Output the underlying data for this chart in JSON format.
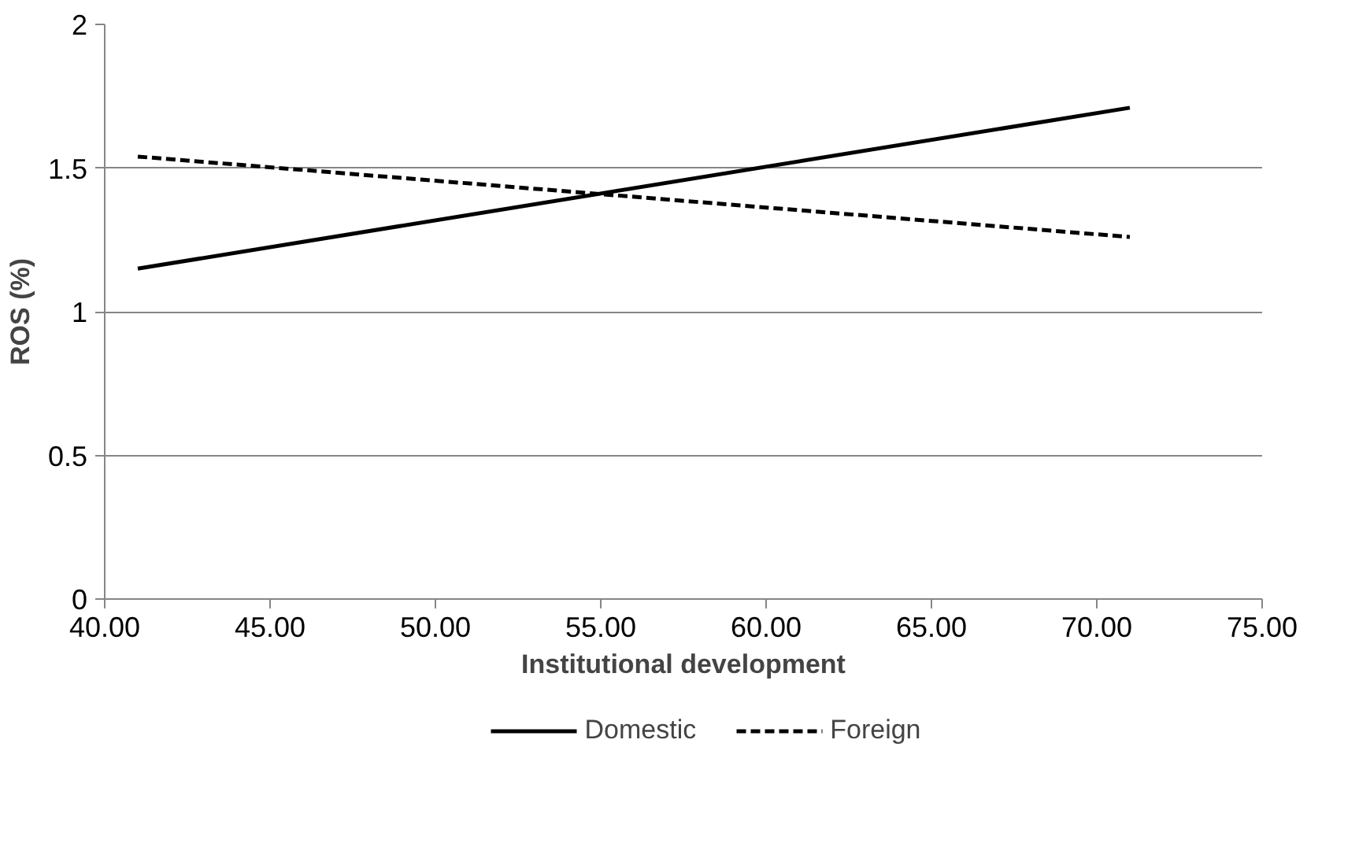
{
  "chart_data": {
    "type": "line",
    "xlabel": "Institutional development",
    "ylabel": "ROS (%)",
    "x": [
      41,
      71
    ],
    "series": [
      {
        "name": "Domestic",
        "color": "#000000",
        "values": [
          1.15,
          1.71
        ],
        "line_style": "solid"
      },
      {
        "name": "Foreign",
        "color": "#000000",
        "values": [
          1.54,
          1.26
        ],
        "line_style": "dashed"
      }
    ],
    "xlim": [
      40,
      75
    ],
    "ylim": [
      0,
      2
    ],
    "xticks": [
      {
        "value": 40,
        "label": "40.00"
      },
      {
        "value": 45,
        "label": "45.00"
      },
      {
        "value": 50,
        "label": "50.00"
      },
      {
        "value": 55,
        "label": "55.00"
      },
      {
        "value": 60,
        "label": "60.00"
      },
      {
        "value": 65,
        "label": "65.00"
      },
      {
        "value": 70,
        "label": "70.00"
      },
      {
        "value": 75,
        "label": "75.00"
      }
    ],
    "yticks": [
      0,
      0.5,
      1,
      1.5,
      2
    ],
    "grid": "y",
    "legend": "bottom",
    "marker": "none"
  }
}
